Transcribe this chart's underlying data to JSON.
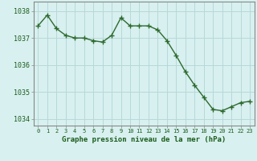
{
  "x": [
    0,
    1,
    2,
    3,
    4,
    5,
    6,
    7,
    8,
    9,
    10,
    11,
    12,
    13,
    14,
    15,
    16,
    17,
    18,
    19,
    20,
    21,
    22,
    23
  ],
  "y": [
    1037.45,
    1037.85,
    1037.35,
    1037.1,
    1037.0,
    1037.0,
    1036.9,
    1036.85,
    1037.1,
    1037.75,
    1037.45,
    1037.45,
    1037.45,
    1037.3,
    1036.9,
    1036.35,
    1035.75,
    1035.25,
    1034.8,
    1034.35,
    1034.3,
    1034.45,
    1034.6,
    1034.65
  ],
  "line_color": "#2d6a2d",
  "marker": "+",
  "marker_size": 4,
  "bg_color": "#d8f0f0",
  "grid_color": "#b8d8d8",
  "xlabel": "Graphe pression niveau de la mer (hPa)",
  "xlabel_color": "#1a5c1a",
  "tick_color": "#1a5c1a",
  "axis_color": "#888888",
  "ylim": [
    1033.75,
    1038.35
  ],
  "yticks": [
    1034,
    1035,
    1036,
    1037,
    1038
  ],
  "xticks": [
    0,
    1,
    2,
    3,
    4,
    5,
    6,
    7,
    8,
    9,
    10,
    11,
    12,
    13,
    14,
    15,
    16,
    17,
    18,
    19,
    20,
    21,
    22,
    23
  ]
}
